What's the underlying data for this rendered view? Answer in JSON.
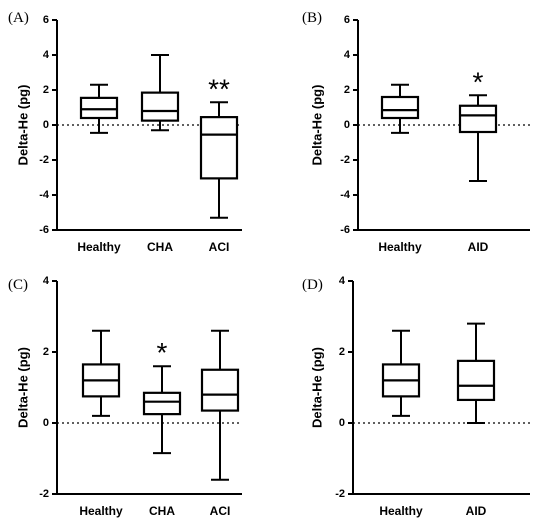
{
  "chart_data": [
    {
      "type": "box",
      "panel_label": "(A)",
      "ylabel": "Delta-He (pg)",
      "ylim": [
        -6,
        6
      ],
      "yticks": [
        "-6",
        "-4",
        "-2",
        "0",
        "2",
        "4",
        "6"
      ],
      "ytick_values": [
        -6,
        -4,
        -2,
        0,
        2,
        4,
        6
      ],
      "reference_line": 0,
      "categories": [
        "Healthy",
        "CHA",
        "ACI"
      ],
      "boxes": [
        {
          "min": -0.45,
          "q1": 0.4,
          "median": 0.9,
          "q3": 1.55,
          "max": 2.3,
          "annotation": ""
        },
        {
          "min": -0.3,
          "q1": 0.25,
          "median": 0.8,
          "q3": 1.85,
          "max": 4.0,
          "annotation": ""
        },
        {
          "min": -5.3,
          "q1": -3.05,
          "median": -0.55,
          "q3": 0.45,
          "max": 1.3,
          "annotation": "**"
        }
      ]
    },
    {
      "type": "box",
      "panel_label": "(B)",
      "ylabel": "Delta-He (pg)",
      "ylim": [
        -6,
        6
      ],
      "yticks": [
        "-6",
        "-4",
        "-2",
        "0",
        "2",
        "4",
        "6"
      ],
      "ytick_values": [
        -6,
        -4,
        -2,
        0,
        2,
        4,
        6
      ],
      "reference_line": 0,
      "categories": [
        "Healthy",
        "AID"
      ],
      "boxes": [
        {
          "min": -0.45,
          "q1": 0.4,
          "median": 0.85,
          "q3": 1.6,
          "max": 2.3,
          "annotation": ""
        },
        {
          "min": -3.2,
          "q1": -0.4,
          "median": 0.55,
          "q3": 1.1,
          "max": 1.7,
          "annotation": "*"
        }
      ]
    },
    {
      "type": "box",
      "panel_label": "(C)",
      "ylabel": "Delta-He  (pg)",
      "ylim": [
        -2,
        4
      ],
      "yticks": [
        "-2",
        "0",
        "2",
        "4"
      ],
      "ytick_values": [
        -2,
        0,
        2,
        4
      ],
      "reference_line": 0,
      "categories": [
        "Healthy",
        "CHA",
        "ACI"
      ],
      "boxes": [
        {
          "min": 0.2,
          "q1": 0.75,
          "median": 1.2,
          "q3": 1.65,
          "max": 2.6,
          "annotation": ""
        },
        {
          "min": -0.85,
          "q1": 0.25,
          "median": 0.6,
          "q3": 0.85,
          "max": 1.6,
          "annotation": "*"
        },
        {
          "min": -1.6,
          "q1": 0.35,
          "median": 0.8,
          "q3": 1.5,
          "max": 2.6,
          "annotation": ""
        }
      ]
    },
    {
      "type": "box",
      "panel_label": "(D)",
      "ylabel": "Delta-He  (pg)",
      "ylim": [
        -2,
        4
      ],
      "yticks": [
        "-2",
        "0",
        "2",
        "4"
      ],
      "ytick_values": [
        -2,
        0,
        2,
        4
      ],
      "reference_line": 0,
      "categories": [
        "Healthy",
        "AID"
      ],
      "boxes": [
        {
          "min": 0.2,
          "q1": 0.75,
          "median": 1.2,
          "q3": 1.65,
          "max": 2.6,
          "annotation": ""
        },
        {
          "min": 0.0,
          "q1": 0.65,
          "median": 1.05,
          "q3": 1.75,
          "max": 2.8,
          "annotation": ""
        }
      ]
    }
  ]
}
